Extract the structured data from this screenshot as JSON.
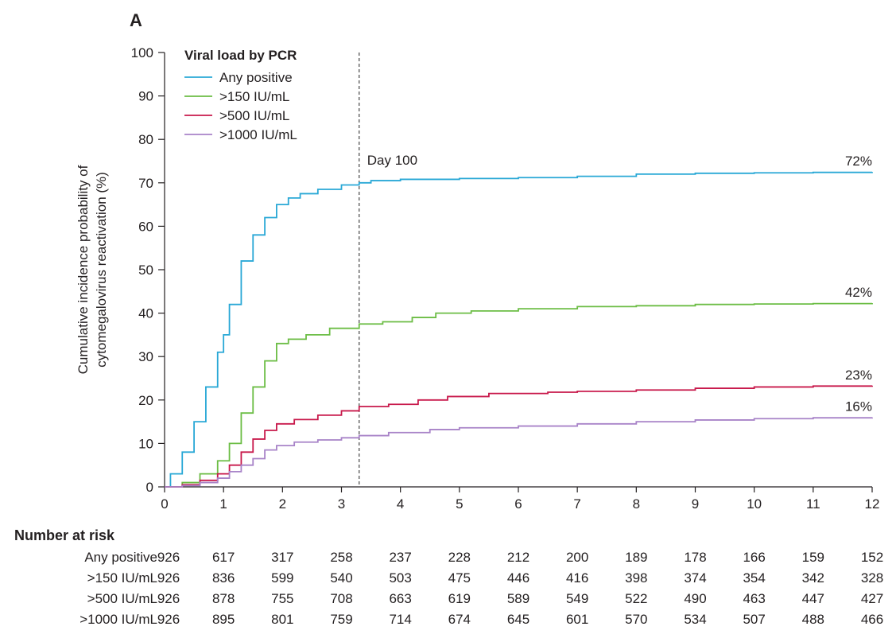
{
  "panel_label": "A",
  "chart_data": {
    "type": "line",
    "ylabel_lines": [
      "Cumulative incidence probability of",
      "cytomegalovirus reactivation (%)"
    ],
    "xlabel": "",
    "xlim": [
      0,
      12
    ],
    "ylim": [
      0,
      100
    ],
    "x_ticks": [
      0,
      1,
      2,
      3,
      4,
      5,
      6,
      7,
      8,
      9,
      10,
      11,
      12
    ],
    "y_ticks": [
      0,
      10,
      20,
      30,
      40,
      50,
      60,
      70,
      80,
      90,
      100
    ],
    "legend_title": "Viral load by PCR",
    "legend_position": "top-left",
    "grid": false,
    "reference_line": {
      "x": 3.3,
      "label": "Day 100"
    },
    "series": [
      {
        "name": "Any positive",
        "color": "#29a8d6",
        "end_label": "72%",
        "points": [
          [
            0,
            0
          ],
          [
            0.1,
            3
          ],
          [
            0.3,
            8
          ],
          [
            0.5,
            15
          ],
          [
            0.7,
            23
          ],
          [
            0.9,
            31
          ],
          [
            1.0,
            35
          ],
          [
            1.1,
            42
          ],
          [
            1.3,
            52
          ],
          [
            1.5,
            58
          ],
          [
            1.7,
            62
          ],
          [
            1.9,
            65
          ],
          [
            2.1,
            66.5
          ],
          [
            2.3,
            67.5
          ],
          [
            2.6,
            68.5
          ],
          [
            3.0,
            69.5
          ],
          [
            3.3,
            70
          ],
          [
            3.5,
            70.5
          ],
          [
            4,
            70.8
          ],
          [
            5,
            71
          ],
          [
            6,
            71.2
          ],
          [
            7,
            71.5
          ],
          [
            8,
            72
          ],
          [
            9,
            72.2
          ],
          [
            10,
            72.3
          ],
          [
            11,
            72.4
          ],
          [
            12,
            72.5
          ]
        ]
      },
      {
        "name": ">150 IU/mL",
        "color": "#6cbd45",
        "end_label": "42%",
        "points": [
          [
            0,
            0
          ],
          [
            0.3,
            1
          ],
          [
            0.6,
            3
          ],
          [
            0.9,
            6
          ],
          [
            1.1,
            10
          ],
          [
            1.3,
            17
          ],
          [
            1.5,
            23
          ],
          [
            1.7,
            29
          ],
          [
            1.9,
            33
          ],
          [
            2.1,
            34
          ],
          [
            2.4,
            35
          ],
          [
            2.8,
            36.5
          ],
          [
            3.3,
            37.5
          ],
          [
            3.7,
            38
          ],
          [
            4.2,
            39
          ],
          [
            4.6,
            40
          ],
          [
            5.2,
            40.5
          ],
          [
            6,
            41
          ],
          [
            7,
            41.5
          ],
          [
            8,
            41.7
          ],
          [
            9,
            42
          ],
          [
            10,
            42.1
          ],
          [
            11,
            42.2
          ],
          [
            12,
            42.3
          ]
        ]
      },
      {
        "name": ">500 IU/mL",
        "color": "#c8194b",
        "end_label": "23%",
        "points": [
          [
            0,
            0
          ],
          [
            0.3,
            0.5
          ],
          [
            0.6,
            1.5
          ],
          [
            0.9,
            3
          ],
          [
            1.1,
            5
          ],
          [
            1.3,
            8
          ],
          [
            1.5,
            11
          ],
          [
            1.7,
            13
          ],
          [
            1.9,
            14.5
          ],
          [
            2.2,
            15.5
          ],
          [
            2.6,
            16.5
          ],
          [
            3.0,
            17.5
          ],
          [
            3.3,
            18.5
          ],
          [
            3.8,
            19
          ],
          [
            4.3,
            20
          ],
          [
            4.8,
            20.8
          ],
          [
            5.5,
            21.5
          ],
          [
            6.5,
            21.8
          ],
          [
            7,
            22
          ],
          [
            8,
            22.3
          ],
          [
            9,
            22.7
          ],
          [
            10,
            23
          ],
          [
            11,
            23.2
          ],
          [
            12,
            23.3
          ]
        ]
      },
      {
        "name": ">1000 IU/mL",
        "color": "#a883c8",
        "end_label": "16%",
        "points": [
          [
            0,
            0
          ],
          [
            0.3,
            0.3
          ],
          [
            0.6,
            1
          ],
          [
            0.9,
            2
          ],
          [
            1.1,
            3.5
          ],
          [
            1.3,
            5
          ],
          [
            1.5,
            6.5
          ],
          [
            1.7,
            8.5
          ],
          [
            1.9,
            9.5
          ],
          [
            2.2,
            10.3
          ],
          [
            2.6,
            10.8
          ],
          [
            3.0,
            11.3
          ],
          [
            3.3,
            11.8
          ],
          [
            3.8,
            12.5
          ],
          [
            4.5,
            13.2
          ],
          [
            5,
            13.6
          ],
          [
            6,
            14
          ],
          [
            7,
            14.5
          ],
          [
            8,
            15
          ],
          [
            9,
            15.4
          ],
          [
            10,
            15.7
          ],
          [
            11,
            15.9
          ],
          [
            12,
            16
          ]
        ]
      }
    ]
  },
  "risk_table": {
    "title": "Number at risk",
    "rows": [
      {
        "label": "Any positive",
        "values": [
          "926",
          "617",
          "317",
          "258",
          "237",
          "228",
          "212",
          "200",
          "189",
          "178",
          "166",
          "159",
          "152"
        ]
      },
      {
        "label": ">150 IU/mL",
        "values": [
          "926",
          "836",
          "599",
          "540",
          "503",
          "475",
          "446",
          "416",
          "398",
          "374",
          "354",
          "342",
          "328"
        ]
      },
      {
        "label": ">500 IU/mL",
        "values": [
          "926",
          "878",
          "755",
          "708",
          "663",
          "619",
          "589",
          "549",
          "522",
          "490",
          "463",
          "447",
          "427"
        ]
      },
      {
        "label": ">1000 IU/mL",
        "values": [
          "926",
          "895",
          "801",
          "759",
          "714",
          "674",
          "645",
          "601",
          "570",
          "534",
          "507",
          "488",
          "466"
        ]
      }
    ]
  }
}
